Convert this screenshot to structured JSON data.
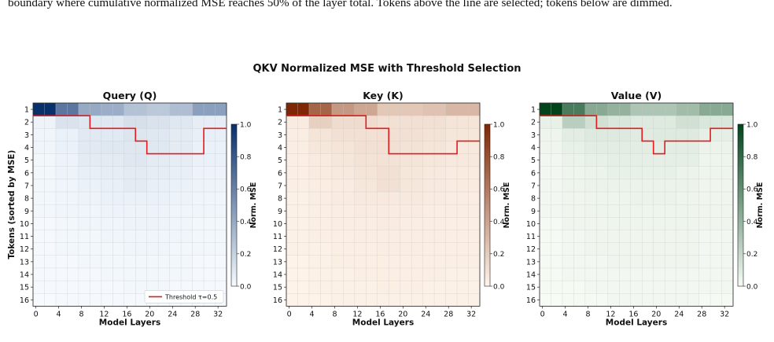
{
  "caption": "boundary where cumulative normalized MSE reaches 50% of the layer total. Tokens above the line are selected; tokens below are dimmed.",
  "figure_title": "QKV Normalized MSE with Threshold Selection",
  "colors": {
    "threshold_line": "#e41a1c",
    "grid": "#c8c8c8",
    "Q": {
      "low": "#f7fbff",
      "high": "#08306b"
    },
    "K": {
      "low": "#fff5eb",
      "high": "#7f2704"
    },
    "V": {
      "low": "#f7fcf5",
      "high": "#00441b"
    }
  },
  "chart_data": [
    {
      "type": "heatmap",
      "id": "Q",
      "title": "Query (Q)",
      "colormap": "Blues",
      "xlabel": "Model Layers",
      "ylabel": "Tokens (sorted by MSE)",
      "colorbar_label": "Norm. MSE",
      "colorbar_ticks": [
        "0.0",
        "0.2",
        "0.4",
        "0.6",
        "0.8",
        "1.0"
      ],
      "x_tick_labels": [
        "0",
        "4",
        "8",
        "12",
        "16",
        "20",
        "24",
        "28",
        "32"
      ],
      "y_tick_labels": [
        "1",
        "2",
        "3",
        "4",
        "5",
        "6",
        "7",
        "8",
        "9",
        "10",
        "11",
        "12",
        "13",
        "14",
        "15",
        "16"
      ],
      "layer_bins": [
        "0-3",
        "4-7",
        "8-11",
        "12-15",
        "16-19",
        "20-23",
        "24-27",
        "28-33"
      ],
      "values": [
        [
          1.0,
          0.65,
          0.4,
          0.38,
          0.28,
          0.25,
          0.3,
          0.45
        ],
        [
          0.04,
          0.12,
          0.1,
          0.1,
          0.14,
          0.12,
          0.1,
          0.07
        ],
        [
          0.03,
          0.05,
          0.09,
          0.09,
          0.11,
          0.1,
          0.08,
          0.06
        ],
        [
          0.03,
          0.05,
          0.09,
          0.1,
          0.1,
          0.1,
          0.08,
          0.05
        ],
        [
          0.02,
          0.04,
          0.08,
          0.08,
          0.1,
          0.08,
          0.07,
          0.05
        ],
        [
          0.02,
          0.04,
          0.06,
          0.07,
          0.08,
          0.07,
          0.06,
          0.04
        ],
        [
          0.02,
          0.03,
          0.05,
          0.06,
          0.08,
          0.06,
          0.05,
          0.04
        ],
        [
          0.02,
          0.03,
          0.04,
          0.05,
          0.05,
          0.05,
          0.04,
          0.03
        ],
        [
          0.02,
          0.03,
          0.03,
          0.04,
          0.04,
          0.04,
          0.03,
          0.03
        ],
        [
          0.01,
          0.02,
          0.03,
          0.03,
          0.04,
          0.04,
          0.03,
          0.02
        ],
        [
          0.01,
          0.02,
          0.02,
          0.03,
          0.03,
          0.03,
          0.03,
          0.02
        ],
        [
          0.01,
          0.02,
          0.02,
          0.02,
          0.03,
          0.03,
          0.02,
          0.02
        ],
        [
          0.01,
          0.01,
          0.02,
          0.02,
          0.02,
          0.02,
          0.02,
          0.01
        ],
        [
          0.01,
          0.01,
          0.01,
          0.02,
          0.02,
          0.02,
          0.02,
          0.01
        ],
        [
          0.01,
          0.01,
          0.01,
          0.01,
          0.02,
          0.02,
          0.01,
          0.01
        ],
        [
          0.0,
          0.01,
          0.01,
          0.01,
          0.01,
          0.01,
          0.01,
          0.01
        ]
      ],
      "threshold_tokens_selected": [
        1,
        1,
        2,
        2,
        3,
        4,
        4,
        4,
        2
      ],
      "legend_label": "Threshold τ=0.5",
      "legend_position": "lower-right"
    },
    {
      "type": "heatmap",
      "id": "K",
      "title": "Key (K)",
      "colormap": "Oranges",
      "xlabel": "Model Layers",
      "ylabel": "",
      "colorbar_label": "Norm. MSE",
      "colorbar_ticks": [
        "0.0",
        "0.2",
        "0.4",
        "0.6",
        "0.8",
        "1.0"
      ],
      "x_tick_labels": [
        "0",
        "4",
        "8",
        "12",
        "16",
        "20",
        "24",
        "28",
        "32"
      ],
      "y_tick_labels": [
        "1",
        "2",
        "3",
        "4",
        "5",
        "6",
        "7",
        "8",
        "9",
        "10",
        "11",
        "12",
        "13",
        "14",
        "15",
        "16"
      ],
      "layer_bins": [
        "0-3",
        "4-7",
        "8-11",
        "12-15",
        "16-19",
        "20-23",
        "24-27",
        "28-33"
      ],
      "values": [
        [
          1.0,
          0.7,
          0.45,
          0.38,
          0.22,
          0.22,
          0.25,
          0.3
        ],
        [
          0.05,
          0.18,
          0.12,
          0.12,
          0.1,
          0.1,
          0.1,
          0.08
        ],
        [
          0.04,
          0.08,
          0.1,
          0.1,
          0.1,
          0.1,
          0.09,
          0.07
        ],
        [
          0.04,
          0.07,
          0.08,
          0.1,
          0.1,
          0.09,
          0.08,
          0.06
        ],
        [
          0.03,
          0.05,
          0.07,
          0.09,
          0.09,
          0.08,
          0.07,
          0.06
        ],
        [
          0.03,
          0.05,
          0.06,
          0.08,
          0.1,
          0.07,
          0.06,
          0.05
        ],
        [
          0.03,
          0.04,
          0.05,
          0.07,
          0.1,
          0.07,
          0.06,
          0.05
        ],
        [
          0.02,
          0.04,
          0.05,
          0.06,
          0.06,
          0.06,
          0.05,
          0.04
        ],
        [
          0.02,
          0.03,
          0.04,
          0.05,
          0.05,
          0.05,
          0.04,
          0.04
        ],
        [
          0.02,
          0.03,
          0.04,
          0.04,
          0.05,
          0.04,
          0.04,
          0.03
        ],
        [
          0.02,
          0.03,
          0.03,
          0.04,
          0.04,
          0.04,
          0.04,
          0.03
        ],
        [
          0.02,
          0.02,
          0.03,
          0.03,
          0.04,
          0.04,
          0.03,
          0.03
        ],
        [
          0.01,
          0.02,
          0.03,
          0.03,
          0.03,
          0.03,
          0.03,
          0.03
        ],
        [
          0.01,
          0.02,
          0.02,
          0.03,
          0.03,
          0.03,
          0.03,
          0.02
        ],
        [
          0.01,
          0.02,
          0.02,
          0.02,
          0.03,
          0.03,
          0.02,
          0.02
        ],
        [
          0.01,
          0.01,
          0.02,
          0.02,
          0.02,
          0.02,
          0.02,
          0.02
        ]
      ],
      "threshold_tokens_selected": [
        1,
        1,
        1,
        2,
        4,
        4,
        4,
        4,
        3
      ]
    },
    {
      "type": "heatmap",
      "id": "V",
      "title": "Value (V)",
      "colormap": "Greens",
      "xlabel": "Model Layers",
      "ylabel": "",
      "colorbar_label": "Norm. MSE",
      "colorbar_ticks": [
        "0.0",
        "0.2",
        "0.4",
        "0.6",
        "0.8",
        "1.0"
      ],
      "x_tick_labels": [
        "0",
        "4",
        "8",
        "12",
        "16",
        "20",
        "24",
        "28",
        "32"
      ],
      "y_tick_labels": [
        "1",
        "2",
        "3",
        "4",
        "5",
        "6",
        "7",
        "8",
        "9",
        "10",
        "11",
        "12",
        "13",
        "14",
        "15",
        "16"
      ],
      "layer_bins": [
        "0-3",
        "4-7",
        "8-11",
        "12-15",
        "16-19",
        "20-23",
        "24-27",
        "28-33"
      ],
      "values": [
        [
          1.0,
          0.7,
          0.45,
          0.4,
          0.3,
          0.3,
          0.35,
          0.45
        ],
        [
          0.06,
          0.25,
          0.15,
          0.12,
          0.1,
          0.1,
          0.15,
          0.12
        ],
        [
          0.04,
          0.08,
          0.1,
          0.1,
          0.09,
          0.1,
          0.1,
          0.07
        ],
        [
          0.03,
          0.06,
          0.08,
          0.08,
          0.08,
          0.08,
          0.08,
          0.05
        ],
        [
          0.02,
          0.05,
          0.06,
          0.07,
          0.07,
          0.07,
          0.07,
          0.04
        ],
        [
          0.02,
          0.04,
          0.05,
          0.06,
          0.06,
          0.06,
          0.05,
          0.04
        ],
        [
          0.02,
          0.04,
          0.05,
          0.05,
          0.05,
          0.05,
          0.05,
          0.03
        ],
        [
          0.02,
          0.03,
          0.04,
          0.04,
          0.05,
          0.05,
          0.04,
          0.03
        ],
        [
          0.02,
          0.03,
          0.04,
          0.04,
          0.04,
          0.04,
          0.04,
          0.03
        ],
        [
          0.01,
          0.03,
          0.03,
          0.04,
          0.04,
          0.04,
          0.04,
          0.03
        ],
        [
          0.01,
          0.02,
          0.03,
          0.03,
          0.03,
          0.03,
          0.03,
          0.02
        ],
        [
          0.01,
          0.02,
          0.03,
          0.03,
          0.03,
          0.03,
          0.03,
          0.02
        ],
        [
          0.01,
          0.02,
          0.02,
          0.03,
          0.03,
          0.03,
          0.03,
          0.02
        ],
        [
          0.01,
          0.02,
          0.02,
          0.02,
          0.02,
          0.02,
          0.02,
          0.02
        ],
        [
          0.01,
          0.01,
          0.02,
          0.02,
          0.02,
          0.02,
          0.02,
          0.02
        ],
        [
          0.0,
          0.01,
          0.01,
          0.02,
          0.02,
          0.02,
          0.02,
          0.01
        ]
      ],
      "threshold_tokens_selected": [
        1,
        1,
        2,
        2,
        3,
        4,
        3,
        3,
        2
      ]
    }
  ]
}
